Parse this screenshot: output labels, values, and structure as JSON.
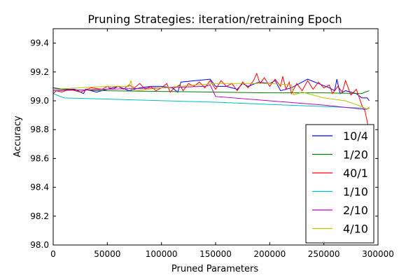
{
  "chart_data": {
    "type": "line",
    "title": "Pruning Strategies: iteration/retraining Epoch",
    "xlabel": "Pruned Parameters",
    "ylabel": "Accuracy",
    "xlim": [
      0,
      300000
    ],
    "ylim": [
      98.0,
      99.5
    ],
    "xticks": [
      0,
      50000,
      100000,
      150000,
      200000,
      250000,
      300000
    ],
    "xtick_labels": [
      "0",
      "50000",
      "100000",
      "150000",
      "200000",
      "250000",
      "300000"
    ],
    "yticks": [
      98.0,
      98.2,
      98.4,
      98.6,
      98.8,
      99.0,
      99.2,
      99.4
    ],
    "ytick_labels": [
      "98.0",
      "98.2",
      "98.4",
      "98.6",
      "98.8",
      "99.0",
      "99.2",
      "99.4"
    ],
    "grid": false,
    "legend_position": "lower right",
    "series": [
      {
        "name": "10/4",
        "color": "#0000ff",
        "x": [
          0,
          10000,
          20000,
          28000,
          30000,
          40000,
          50000,
          60000,
          70000,
          80000,
          90000,
          100000,
          110000,
          115000,
          118000,
          145000,
          150000,
          160000,
          170000,
          175000,
          180000,
          190000,
          200000,
          205000,
          210000,
          220000,
          235000,
          245000,
          255000,
          260000,
          262000,
          265000,
          270000,
          280000,
          285000,
          290000,
          292000
        ],
        "y": [
          99.09,
          99.08,
          99.08,
          99.05,
          99.08,
          99.06,
          99.08,
          99.1,
          99.07,
          99.09,
          99.1,
          99.1,
          99.09,
          99.06,
          99.13,
          99.15,
          99.1,
          99.1,
          99.08,
          99.12,
          99.1,
          99.13,
          99.12,
          99.14,
          99.07,
          99.09,
          99.15,
          99.12,
          99.09,
          99.07,
          99.15,
          99.05,
          99.07,
          99.05,
          99.02,
          99.02,
          99.0
        ]
      },
      {
        "name": "1/20",
        "color": "#008000",
        "x": [
          0,
          50000,
          100000,
          150000,
          200000,
          250000,
          285000,
          288000,
          292000
        ],
        "y": [
          99.08,
          99.07,
          99.065,
          99.06,
          99.055,
          99.055,
          99.05,
          99.06,
          99.07
        ]
      },
      {
        "name": "40/1",
        "color": "#ff0000",
        "x": [
          0,
          3000,
          8000,
          15000,
          25000,
          35000,
          45000,
          50000,
          55000,
          60000,
          65000,
          70000,
          75000,
          80000,
          85000,
          90000,
          95000,
          100000,
          105000,
          108000,
          112000,
          117000,
          120000,
          125000,
          130000,
          135000,
          140000,
          145000,
          150000,
          155000,
          160000,
          165000,
          170000,
          175000,
          180000,
          185000,
          188000,
          191000,
          195000,
          200000,
          205000,
          210000,
          212000,
          215000,
          218000,
          220000,
          225000,
          230000,
          235000,
          240000,
          245000,
          250000,
          255000,
          258000,
          263000,
          267000,
          270000,
          275000,
          280000,
          285000,
          288000,
          291000
        ],
        "y": [
          99.05,
          99.07,
          99.06,
          99.08,
          99.06,
          99.09,
          99.08,
          99.1,
          99.08,
          99.1,
          99.08,
          99.11,
          99.09,
          99.12,
          99.08,
          99.1,
          99.07,
          99.09,
          99.12,
          99.06,
          99.09,
          99.11,
          99.07,
          99.12,
          99.1,
          99.13,
          99.09,
          99.14,
          99.08,
          99.14,
          99.1,
          99.12,
          99.07,
          99.13,
          99.09,
          99.14,
          99.19,
          99.12,
          99.16,
          99.1,
          99.15,
          99.1,
          99.17,
          99.08,
          99.13,
          99.05,
          99.12,
          99.07,
          99.14,
          99.08,
          99.13,
          99.09,
          99.11,
          99.05,
          99.1,
          99.06,
          99.14,
          99.04,
          99.08,
          98.97,
          98.93,
          98.82
        ]
      },
      {
        "name": "1/10",
        "color": "#00bfbf",
        "x": [
          0,
          10000,
          150000,
          285000,
          290000
        ],
        "y": [
          99.05,
          99.02,
          98.99,
          98.95,
          98.94
        ]
      },
      {
        "name": "2/10",
        "color": "#bf00bf",
        "x": [
          0,
          50000,
          100000,
          140000,
          145000,
          150000,
          200000,
          250000,
          288000,
          292000
        ],
        "y": [
          99.07,
          99.08,
          99.09,
          99.1,
          99.11,
          99.03,
          99.0,
          98.97,
          98.94,
          98.95
        ]
      },
      {
        "name": "4/10",
        "color": "#bfbf00",
        "x": [
          0,
          50000,
          70000,
          72000,
          73000,
          75000,
          100000,
          150000,
          200000,
          220000,
          222000,
          230000,
          250000,
          270000,
          285000,
          290000,
          292000
        ],
        "y": [
          99.08,
          99.1,
          99.1,
          99.14,
          99.08,
          99.07,
          99.09,
          99.12,
          99.12,
          99.11,
          99.04,
          99.06,
          99.02,
          99.0,
          98.96,
          98.94,
          98.96
        ]
      }
    ]
  }
}
